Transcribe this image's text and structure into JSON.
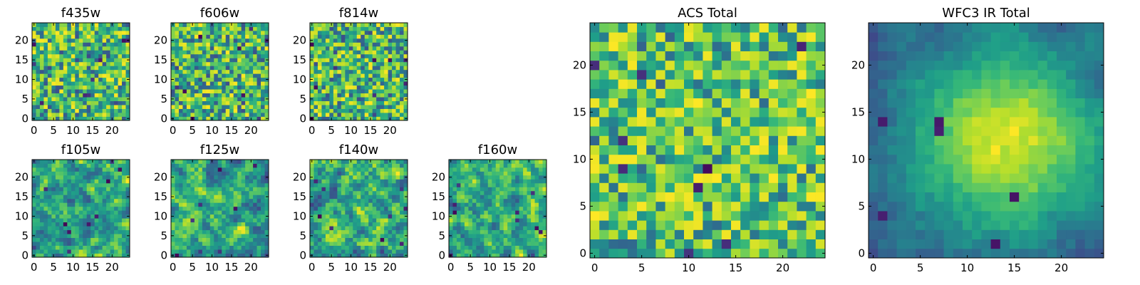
{
  "chart_data": [
    {
      "type": "heatmap",
      "title": "f435w",
      "xticks": [
        "0",
        "5",
        "10",
        "15",
        "20"
      ],
      "yticks": [
        "0",
        "5",
        "10",
        "15",
        "20"
      ],
      "grid_size": 25,
      "xlim": [
        0,
        24
      ],
      "ylim": [
        0,
        24
      ],
      "colormap": "viridis",
      "pattern": "noise",
      "seed": 11
    },
    {
      "type": "heatmap",
      "title": "f606w",
      "xticks": [
        "0",
        "5",
        "10",
        "15",
        "20"
      ],
      "yticks": [
        "0",
        "5",
        "10",
        "15",
        "20"
      ],
      "grid_size": 25,
      "xlim": [
        0,
        24
      ],
      "ylim": [
        0,
        24
      ],
      "colormap": "viridis",
      "pattern": "noise",
      "seed": 23
    },
    {
      "type": "heatmap",
      "title": "f814w",
      "xticks": [
        "0",
        "5",
        "10",
        "15",
        "20"
      ],
      "yticks": [
        "0",
        "5",
        "10",
        "15",
        "20"
      ],
      "grid_size": 25,
      "xlim": [
        0,
        24
      ],
      "ylim": [
        0,
        24
      ],
      "colormap": "viridis",
      "pattern": "noise",
      "seed": 37
    },
    {
      "type": "heatmap",
      "title": "f105w",
      "xticks": [
        "0",
        "5",
        "10",
        "15",
        "20"
      ],
      "yticks": [
        "0",
        "5",
        "10",
        "15",
        "20"
      ],
      "grid_size": 25,
      "xlim": [
        0,
        24
      ],
      "ylim": [
        0,
        24
      ],
      "colormap": "viridis",
      "pattern": "smooth",
      "seed": 41
    },
    {
      "type": "heatmap",
      "title": "f125w",
      "xticks": [
        "0",
        "5",
        "10",
        "15",
        "20"
      ],
      "yticks": [
        "0",
        "5",
        "10",
        "15",
        "20"
      ],
      "grid_size": 25,
      "xlim": [
        0,
        24
      ],
      "ylim": [
        0,
        24
      ],
      "colormap": "viridis",
      "pattern": "smooth",
      "seed": 53
    },
    {
      "type": "heatmap",
      "title": "f140w",
      "xticks": [
        "0",
        "5",
        "10",
        "15",
        "20"
      ],
      "yticks": [
        "0",
        "5",
        "10",
        "15",
        "20"
      ],
      "grid_size": 25,
      "xlim": [
        0,
        24
      ],
      "ylim": [
        0,
        24
      ],
      "colormap": "viridis",
      "pattern": "smooth",
      "seed": 67
    },
    {
      "type": "heatmap",
      "title": "f160w",
      "xticks": [
        "0",
        "5",
        "10",
        "15",
        "20"
      ],
      "yticks": [
        "0",
        "5",
        "10",
        "15",
        "20"
      ],
      "grid_size": 25,
      "xlim": [
        0,
        24
      ],
      "ylim": [
        0,
        24
      ],
      "colormap": "viridis",
      "pattern": "smooth",
      "seed": 79
    },
    {
      "type": "heatmap",
      "title": "ACS Total",
      "xticks": [
        "0",
        "5",
        "10",
        "15",
        "20"
      ],
      "yticks": [
        "0",
        "5",
        "10",
        "15",
        "20"
      ],
      "grid_size": 25,
      "xlim": [
        0,
        24
      ],
      "ylim": [
        0,
        24
      ],
      "colormap": "viridis",
      "pattern": "noise-bright",
      "seed": 97
    },
    {
      "type": "heatmap",
      "title": "WFC3 IR Total",
      "xticks": [
        "0",
        "5",
        "10",
        "15",
        "20"
      ],
      "yticks": [
        "0",
        "5",
        "10",
        "15",
        "20"
      ],
      "grid_size": 25,
      "xlim": [
        0,
        24
      ],
      "ylim": [
        0,
        24
      ],
      "colormap": "viridis",
      "pattern": "blob",
      "seed": 113
    }
  ]
}
